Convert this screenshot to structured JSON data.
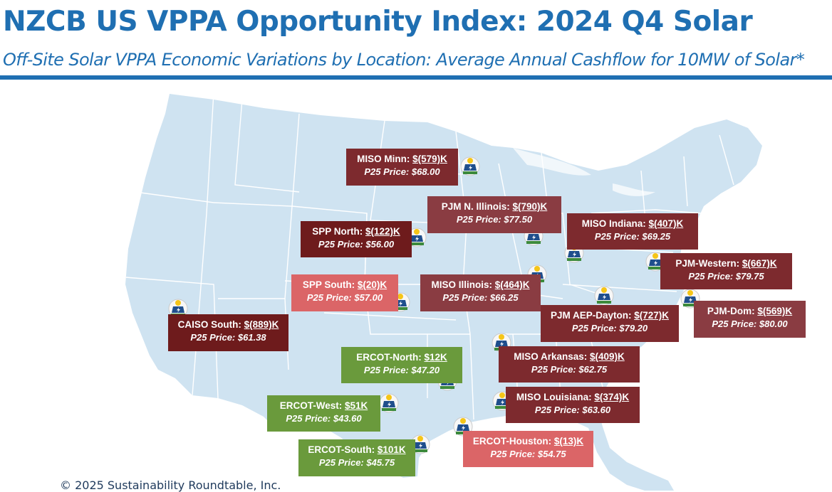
{
  "header": {
    "title": "NZCB US VPPA Opportunity Index: 2024 Q4 Solar",
    "subtitle": "Off-Site Solar VPPA Economic Variations by Location: Average Annual Cashflow for 10MW of Solar*"
  },
  "footer": {
    "copyright": "© 2025 Sustainability Roundtable, Inc."
  },
  "colors": {
    "title_blue": "#1f6fb2",
    "map_fill": "#cfe3f1",
    "state_border": "#ffffff",
    "negative_dark": "#6e1b1c",
    "negative_mid": "#7d2a2e",
    "negative_light": "#db6567",
    "positive_green": "#6a9a3c"
  },
  "map": {
    "name_icon": "us-states-map",
    "marker_icon": "solar-panel-icon",
    "markers": [
      "miso-minn",
      "pjm-n-illinois",
      "spp-north",
      "miso-indiana",
      "pjm-western",
      "spp-south",
      "miso-illinois",
      "caiso-south",
      "pjm-aep-dayton",
      "pjm-dom",
      "ercot-north",
      "miso-arkansas",
      "ercot-west",
      "miso-louisiana",
      "ercot-south",
      "ercot-houston"
    ]
  },
  "locations": [
    {
      "id": "miso-minn",
      "name": "MISO Minn: ",
      "value": "$(579)K",
      "price": "P25 Price: $68.00"
    },
    {
      "id": "pjm-n-illinois",
      "name": "PJM N. Illinois: ",
      "value": "$(790)K",
      "price": "P25 Price: $77.50"
    },
    {
      "id": "spp-north",
      "name": "SPP North: ",
      "value": "$(122)K",
      "price": "P25 Price: $56.00"
    },
    {
      "id": "miso-indiana",
      "name": "MISO Indiana: ",
      "value": "$(407)K",
      "price": "P25 Price: $69.25"
    },
    {
      "id": "pjm-western",
      "name": "PJM-Western: ",
      "value": "$(667)K",
      "price": "P25 Price: $79.75"
    },
    {
      "id": "spp-south",
      "name": "SPP South: ",
      "value": "$(20)K",
      "price": "P25 Price: $57.00"
    },
    {
      "id": "miso-illinois",
      "name": "MISO Illinois: ",
      "value": "$(464)K",
      "price": "P25 Price: $66.25"
    },
    {
      "id": "caiso-south",
      "name": "CAISO South: ",
      "value": "$(889)K",
      "price": "P25 Price: $61.38"
    },
    {
      "id": "pjm-aep-dayton",
      "name": "PJM AEP-Dayton: ",
      "value": "$(727)K",
      "price": "P25 Price: $79.20"
    },
    {
      "id": "pjm-dom",
      "name": "PJM-Dom: ",
      "value": "$(569)K",
      "price": "P25 Price: $80.00"
    },
    {
      "id": "ercot-north",
      "name": "ERCOT-North: ",
      "value": "$12K",
      "price": "P25 Price: $47.20"
    },
    {
      "id": "miso-arkansas",
      "name": "MISO Arkansas: ",
      "value": "$(409)K",
      "price": "P25 Price: $62.75"
    },
    {
      "id": "ercot-west",
      "name": "ERCOT-West: ",
      "value": "$51K",
      "price": "P25 Price: $43.60"
    },
    {
      "id": "miso-louisiana",
      "name": "MISO Louisiana: ",
      "value": "$(374)K",
      "price": "P25 Price: $63.60"
    },
    {
      "id": "ercot-south",
      "name": "ERCOT-South: ",
      "value": "$101K",
      "price": "P25 Price: $45.75"
    },
    {
      "id": "ercot-houston",
      "name": "ERCOT-Houston: ",
      "value": "$(13)K",
      "price": "P25 Price: $54.75"
    }
  ]
}
